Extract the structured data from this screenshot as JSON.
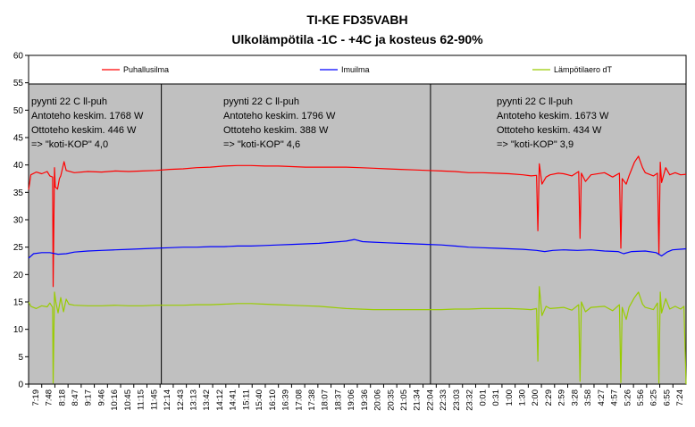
{
  "chart_data": {
    "type": "line",
    "title": "TI-KE FD35VABH",
    "subtitle": "Ulkolämpötila -1C - +4C ja kosteus 62-90%",
    "ylim": [
      0,
      60
    ],
    "yticks": [
      "0",
      "5",
      "10",
      "15",
      "20",
      "25",
      "30",
      "35",
      "40",
      "45",
      "50",
      "55",
      "60"
    ],
    "grid": false,
    "legend_position": "top",
    "x_ticks": [
      "7:19",
      "7:48",
      "8:18",
      "8:47",
      "9:17",
      "9:46",
      "10:16",
      "10:45",
      "11:15",
      "11:45",
      "12:14",
      "12:43",
      "13:13",
      "13:42",
      "14:12",
      "14:41",
      "15:11",
      "15:40",
      "16:10",
      "16:39",
      "17:08",
      "17:38",
      "18:07",
      "18:37",
      "19:06",
      "19:36",
      "20:06",
      "20:35",
      "21:05",
      "21:34",
      "22:04",
      "22:33",
      "23:03",
      "23:32",
      "0:01",
      "0:31",
      "1:00",
      "1:30",
      "2:00",
      "2:29",
      "2:59",
      "3:28",
      "3:58",
      "4:27",
      "4:57",
      "5:26",
      "5:56",
      "6:25",
      "6:55",
      "7:24"
    ],
    "x_span_hours": [
      7.3167,
      31.5
    ],
    "separators_hours": [
      12.2,
      22.1
    ],
    "series": [
      {
        "name": "Puhallusilma",
        "color": "#ff0000",
        "points": [
          [
            7.32,
            35.5
          ],
          [
            7.4,
            38.2
          ],
          [
            7.6,
            38.7
          ],
          [
            7.8,
            38.4
          ],
          [
            8.0,
            38.8
          ],
          [
            8.1,
            38.0
          ],
          [
            8.2,
            37.8
          ],
          [
            8.22,
            17.8
          ],
          [
            8.27,
            39.5
          ],
          [
            8.3,
            36.0
          ],
          [
            8.38,
            35.6
          ],
          [
            8.45,
            37.5
          ],
          [
            8.5,
            38.0
          ],
          [
            8.62,
            40.6
          ],
          [
            8.7,
            39.0
          ],
          [
            9.0,
            38.6
          ],
          [
            9.5,
            38.8
          ],
          [
            10.0,
            38.7
          ],
          [
            10.5,
            38.9
          ],
          [
            11.0,
            38.8
          ],
          [
            11.5,
            38.9
          ],
          [
            12.0,
            39.0
          ],
          [
            12.5,
            39.2
          ],
          [
            13.0,
            39.3
          ],
          [
            13.5,
            39.5
          ],
          [
            14.0,
            39.6
          ],
          [
            14.5,
            39.8
          ],
          [
            15.0,
            39.9
          ],
          [
            15.5,
            39.9
          ],
          [
            16.0,
            39.8
          ],
          [
            16.5,
            39.8
          ],
          [
            17.0,
            39.7
          ],
          [
            17.5,
            39.6
          ],
          [
            18.0,
            39.6
          ],
          [
            18.5,
            39.6
          ],
          [
            19.0,
            39.6
          ],
          [
            19.5,
            39.5
          ],
          [
            20.0,
            39.4
          ],
          [
            20.5,
            39.3
          ],
          [
            21.0,
            39.2
          ],
          [
            21.5,
            39.1
          ],
          [
            22.0,
            39.0
          ],
          [
            22.5,
            38.9
          ],
          [
            23.0,
            38.8
          ],
          [
            23.5,
            38.6
          ],
          [
            24.0,
            38.6
          ],
          [
            24.5,
            38.5
          ],
          [
            25.0,
            38.4
          ],
          [
            25.5,
            38.2
          ],
          [
            25.8,
            38.0
          ],
          [
            26.0,
            38.1
          ],
          [
            26.05,
            28.0
          ],
          [
            26.1,
            40.2
          ],
          [
            26.2,
            36.5
          ],
          [
            26.35,
            37.8
          ],
          [
            26.5,
            38.2
          ],
          [
            26.8,
            38.5
          ],
          [
            27.0,
            38.4
          ],
          [
            27.3,
            38.0
          ],
          [
            27.55,
            38.8
          ],
          [
            27.6,
            26.6
          ],
          [
            27.65,
            38.5
          ],
          [
            27.8,
            37.0
          ],
          [
            28.0,
            38.2
          ],
          [
            28.5,
            38.6
          ],
          [
            28.8,
            37.8
          ],
          [
            29.05,
            38.5
          ],
          [
            29.1,
            24.8
          ],
          [
            29.15,
            37.5
          ],
          [
            29.3,
            36.5
          ],
          [
            29.4,
            38.0
          ],
          [
            29.6,
            40.5
          ],
          [
            29.75,
            41.6
          ],
          [
            29.9,
            39.5
          ],
          [
            30.0,
            38.6
          ],
          [
            30.3,
            38.0
          ],
          [
            30.45,
            38.5
          ],
          [
            30.5,
            23.7
          ],
          [
            30.55,
            40.5
          ],
          [
            30.6,
            36.8
          ],
          [
            30.75,
            39.5
          ],
          [
            30.9,
            38.2
          ],
          [
            31.1,
            38.6
          ],
          [
            31.3,
            38.2
          ],
          [
            31.5,
            38.3
          ]
        ]
      },
      {
        "name": "Imuilma",
        "color": "#0000ff",
        "points": [
          [
            7.32,
            23.0
          ],
          [
            7.5,
            23.8
          ],
          [
            7.8,
            24.0
          ],
          [
            8.1,
            24.0
          ],
          [
            8.4,
            23.7
          ],
          [
            8.7,
            23.8
          ],
          [
            9.0,
            24.1
          ],
          [
            9.5,
            24.3
          ],
          [
            10.0,
            24.4
          ],
          [
            10.5,
            24.5
          ],
          [
            11.0,
            24.6
          ],
          [
            11.5,
            24.7
          ],
          [
            12.0,
            24.8
          ],
          [
            12.5,
            24.9
          ],
          [
            13.0,
            25.0
          ],
          [
            13.5,
            25.0
          ],
          [
            14.0,
            25.1
          ],
          [
            14.5,
            25.1
          ],
          [
            15.0,
            25.2
          ],
          [
            15.5,
            25.2
          ],
          [
            16.0,
            25.3
          ],
          [
            16.5,
            25.4
          ],
          [
            17.0,
            25.5
          ],
          [
            17.5,
            25.6
          ],
          [
            18.0,
            25.7
          ],
          [
            18.5,
            25.9
          ],
          [
            19.0,
            26.1
          ],
          [
            19.3,
            26.4
          ],
          [
            19.6,
            26.0
          ],
          [
            20.0,
            25.9
          ],
          [
            20.5,
            25.8
          ],
          [
            21.0,
            25.7
          ],
          [
            21.5,
            25.6
          ],
          [
            22.0,
            25.5
          ],
          [
            22.5,
            25.4
          ],
          [
            23.0,
            25.2
          ],
          [
            23.5,
            25.0
          ],
          [
            24.0,
            24.9
          ],
          [
            24.5,
            24.8
          ],
          [
            25.0,
            24.7
          ],
          [
            25.5,
            24.6
          ],
          [
            26.0,
            24.4
          ],
          [
            26.3,
            24.2
          ],
          [
            26.6,
            24.4
          ],
          [
            27.0,
            24.5
          ],
          [
            27.5,
            24.4
          ],
          [
            28.0,
            24.5
          ],
          [
            28.5,
            24.3
          ],
          [
            29.0,
            24.2
          ],
          [
            29.2,
            23.8
          ],
          [
            29.5,
            24.2
          ],
          [
            30.0,
            24.3
          ],
          [
            30.4,
            24.0
          ],
          [
            30.6,
            23.4
          ],
          [
            30.8,
            24.1
          ],
          [
            31.0,
            24.5
          ],
          [
            31.5,
            24.7
          ]
        ]
      },
      {
        "name": "Lämpötilaero dT",
        "color": "#99cc00",
        "points": [
          [
            7.32,
            15.0
          ],
          [
            7.4,
            14.2
          ],
          [
            7.6,
            13.8
          ],
          [
            7.8,
            14.3
          ],
          [
            8.0,
            14.1
          ],
          [
            8.1,
            14.8
          ],
          [
            8.2,
            14.0
          ],
          [
            8.22,
            0.2
          ],
          [
            8.27,
            16.8
          ],
          [
            8.32,
            15.0
          ],
          [
            8.4,
            13.0
          ],
          [
            8.5,
            15.8
          ],
          [
            8.6,
            13.2
          ],
          [
            8.7,
            15.5
          ],
          [
            8.8,
            14.6
          ],
          [
            9.0,
            14.4
          ],
          [
            9.5,
            14.3
          ],
          [
            10.0,
            14.3
          ],
          [
            10.5,
            14.4
          ],
          [
            11.0,
            14.3
          ],
          [
            11.5,
            14.3
          ],
          [
            12.0,
            14.4
          ],
          [
            12.5,
            14.4
          ],
          [
            13.0,
            14.4
          ],
          [
            13.5,
            14.5
          ],
          [
            14.0,
            14.5
          ],
          [
            14.5,
            14.6
          ],
          [
            15.0,
            14.7
          ],
          [
            15.5,
            14.7
          ],
          [
            16.0,
            14.6
          ],
          [
            16.5,
            14.5
          ],
          [
            17.0,
            14.4
          ],
          [
            17.5,
            14.3
          ],
          [
            18.0,
            14.2
          ],
          [
            18.5,
            14.0
          ],
          [
            19.0,
            13.8
          ],
          [
            19.5,
            13.7
          ],
          [
            20.0,
            13.6
          ],
          [
            20.5,
            13.6
          ],
          [
            21.0,
            13.6
          ],
          [
            21.5,
            13.6
          ],
          [
            22.0,
            13.6
          ],
          [
            22.5,
            13.6
          ],
          [
            23.0,
            13.7
          ],
          [
            23.5,
            13.7
          ],
          [
            24.0,
            13.8
          ],
          [
            24.5,
            13.8
          ],
          [
            25.0,
            13.8
          ],
          [
            25.5,
            13.7
          ],
          [
            25.8,
            13.6
          ],
          [
            26.0,
            13.8
          ],
          [
            26.05,
            4.2
          ],
          [
            26.1,
            17.8
          ],
          [
            26.2,
            12.5
          ],
          [
            26.35,
            14.2
          ],
          [
            26.5,
            13.8
          ],
          [
            27.0,
            14.0
          ],
          [
            27.3,
            13.5
          ],
          [
            27.55,
            14.5
          ],
          [
            27.6,
            0.5
          ],
          [
            27.65,
            15.0
          ],
          [
            27.8,
            13.2
          ],
          [
            28.0,
            14.0
          ],
          [
            28.5,
            14.2
          ],
          [
            28.8,
            13.4
          ],
          [
            29.05,
            14.5
          ],
          [
            29.1,
            0.3
          ],
          [
            29.15,
            14.0
          ],
          [
            29.3,
            11.8
          ],
          [
            29.4,
            14.0
          ],
          [
            29.6,
            15.8
          ],
          [
            29.75,
            16.8
          ],
          [
            29.9,
            14.6
          ],
          [
            30.0,
            14.0
          ],
          [
            30.3,
            13.6
          ],
          [
            30.45,
            14.8
          ],
          [
            30.5,
            0.2
          ],
          [
            30.55,
            16.8
          ],
          [
            30.6,
            13.0
          ],
          [
            30.75,
            15.6
          ],
          [
            30.9,
            13.7
          ],
          [
            31.1,
            14.2
          ],
          [
            31.3,
            13.7
          ],
          [
            31.42,
            14.2
          ],
          [
            31.5,
            0.0
          ]
        ]
      }
    ],
    "annotations": [
      [
        "pyynti 22 C ll-puh",
        "Antoteho keskim. 1768 W",
        "Ottoteho keskim. 446 W",
        "=> \"koti-KOP\" 4,0"
      ],
      [
        "pyynti 22 C ll-puh",
        "Antoteho keskim. 1796 W",
        "Ottoteho keskim. 388 W",
        "=> \"koti-KOP\" 4,6"
      ],
      [
        "pyynti 22 C ll-puh",
        "Antoteho keskim. 1673 W",
        "Ottoteho keskim. 434 W",
        "=> \"koti-KOP\" 3,9"
      ]
    ]
  }
}
